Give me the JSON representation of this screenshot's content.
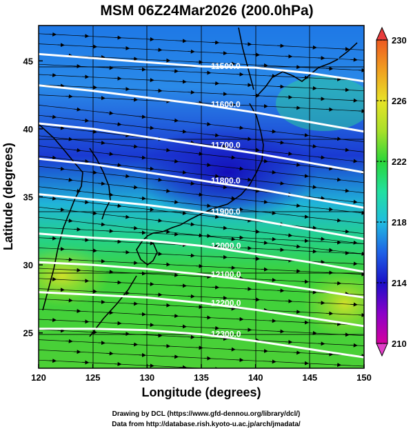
{
  "title": "MSM 06Z24Mar2026 (200.0hPa)",
  "xlabel": "Longitude (degrees)",
  "ylabel": "Latitude  (degrees)",
  "xticks": [
    120,
    125,
    130,
    135,
    140,
    145,
    150
  ],
  "yticks": [
    25,
    30,
    35,
    40,
    45
  ],
  "xlim": [
    120,
    150
  ],
  "ylim": [
    22.4,
    47.6
  ],
  "colorbar": {
    "range": [
      210,
      230
    ],
    "ticks": [
      210,
      214,
      218,
      222,
      226,
      230
    ],
    "colors": [
      "#d4009e",
      "#8a00c8",
      "#1a10c8",
      "#1e62e6",
      "#20bce0",
      "#22e0a0",
      "#2ad63a",
      "#a8e02a",
      "#e8e228",
      "#f0a020",
      "#ee5a20",
      "#e82828"
    ]
  },
  "contours": [
    {
      "label": "11500.0",
      "points": [
        [
          120,
          45.5
        ],
        [
          125,
          45.2
        ],
        [
          130,
          44.9
        ],
        [
          135,
          44.6
        ],
        [
          140,
          44.5
        ],
        [
          145,
          44.1
        ],
        [
          150,
          43.5
        ]
      ]
    },
    {
      "label": "11600.0",
      "points": [
        [
          120,
          43.2
        ],
        [
          125,
          42.8
        ],
        [
          130,
          42.3
        ],
        [
          135,
          41.8
        ],
        [
          140,
          41.2
        ],
        [
          145,
          40.5
        ],
        [
          150,
          39.8
        ]
      ]
    },
    {
      "label": "11700.0",
      "points": [
        [
          120,
          40.4
        ],
        [
          125,
          40.0
        ],
        [
          130,
          39.4
        ],
        [
          135,
          38.8
        ],
        [
          140,
          38.2
        ],
        [
          145,
          37.5
        ],
        [
          150,
          36.8
        ]
      ]
    },
    {
      "label": "11800.0",
      "points": [
        [
          120,
          37.8
        ],
        [
          125,
          37.4
        ],
        [
          130,
          36.8
        ],
        [
          135,
          36.2
        ],
        [
          140,
          35.6
        ],
        [
          145,
          34.9
        ],
        [
          150,
          34.2
        ]
      ]
    },
    {
      "label": "11900.0",
      "points": [
        [
          120,
          35.2
        ],
        [
          125,
          34.8
        ],
        [
          130,
          34.4
        ],
        [
          135,
          33.9
        ],
        [
          140,
          33.3
        ],
        [
          145,
          32.6
        ],
        [
          150,
          31.9
        ]
      ]
    },
    {
      "label": "12000.0",
      "points": [
        [
          120,
          32.3
        ],
        [
          125,
          32.0
        ],
        [
          130,
          31.8
        ],
        [
          135,
          31.4
        ],
        [
          140,
          30.8
        ],
        [
          145,
          30.2
        ],
        [
          150,
          29.5
        ]
      ]
    },
    {
      "label": "12100.0",
      "points": [
        [
          120,
          30.2
        ],
        [
          125,
          30.0
        ],
        [
          130,
          29.7
        ],
        [
          135,
          29.3
        ],
        [
          140,
          28.8
        ],
        [
          145,
          28.2
        ],
        [
          150,
          27.6
        ]
      ]
    },
    {
      "label": "12200.0",
      "points": [
        [
          120,
          28.0
        ],
        [
          125,
          27.8
        ],
        [
          130,
          27.6
        ],
        [
          135,
          27.2
        ],
        [
          140,
          26.7
        ],
        [
          145,
          26.1
        ],
        [
          150,
          25.5
        ]
      ]
    },
    {
      "label": "12300.0",
      "points": [
        [
          120,
          25.3
        ],
        [
          125,
          25.3
        ],
        [
          130,
          25.2
        ],
        [
          135,
          24.9
        ],
        [
          140,
          24.4
        ],
        [
          145,
          23.8
        ],
        [
          150,
          23.2
        ]
      ]
    }
  ],
  "credits": [
    "Drawing by DCL (https://www.gfd-dennou.org/library/dcl/)",
    "Data from http://database.rish.kyoto-u.ac.jp/arch/jmadata/"
  ]
}
